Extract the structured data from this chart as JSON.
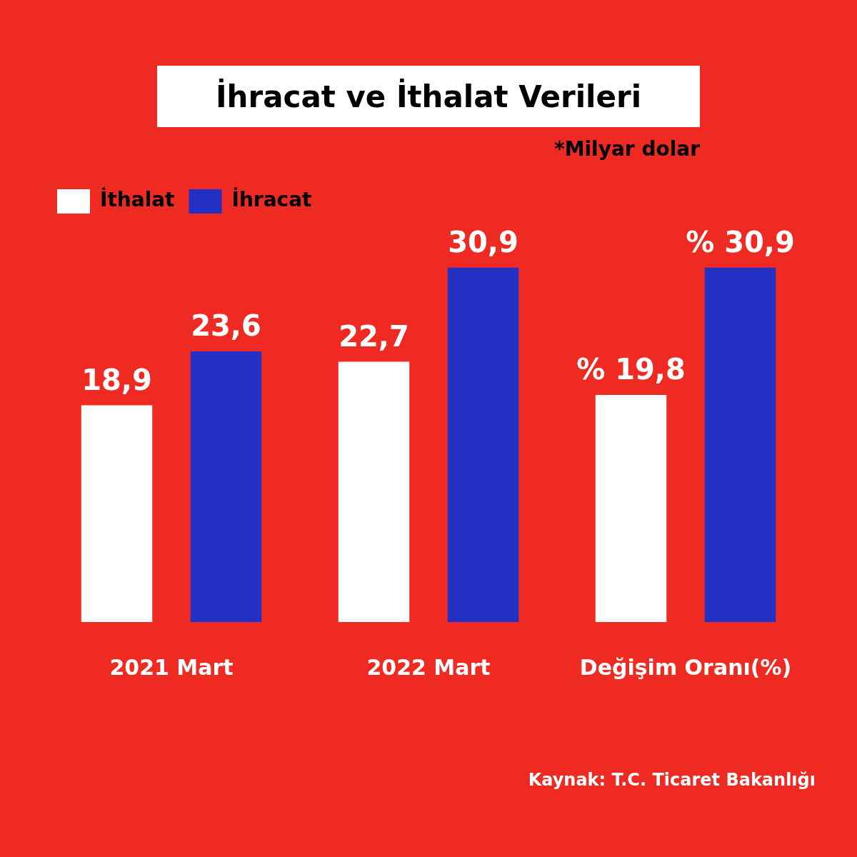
{
  "chart_data": {
    "type": "bar",
    "title": "İhracat ve İthalat Verileri",
    "subtitle": "*Milyar dolar",
    "categories": [
      "2021 Mart",
      "2022 Mart",
      "Değişim Oranı(%)"
    ],
    "series": [
      {
        "name": "İthalat",
        "color": "#ffffff",
        "values": [
          18.9,
          22.7,
          19.8
        ],
        "value_labels": [
          "18,9",
          "22,7",
          "% 19,8"
        ]
      },
      {
        "name": "İhracat",
        "color": "#2430c4",
        "values": [
          23.6,
          30.9,
          30.9
        ],
        "value_labels": [
          "23,6",
          "30,9",
          "% 30,9"
        ]
      }
    ],
    "grid": false,
    "legend": "top left",
    "annotations": [
      "Kaynak: T.C. Ticaret Bakanlığı"
    ]
  }
}
